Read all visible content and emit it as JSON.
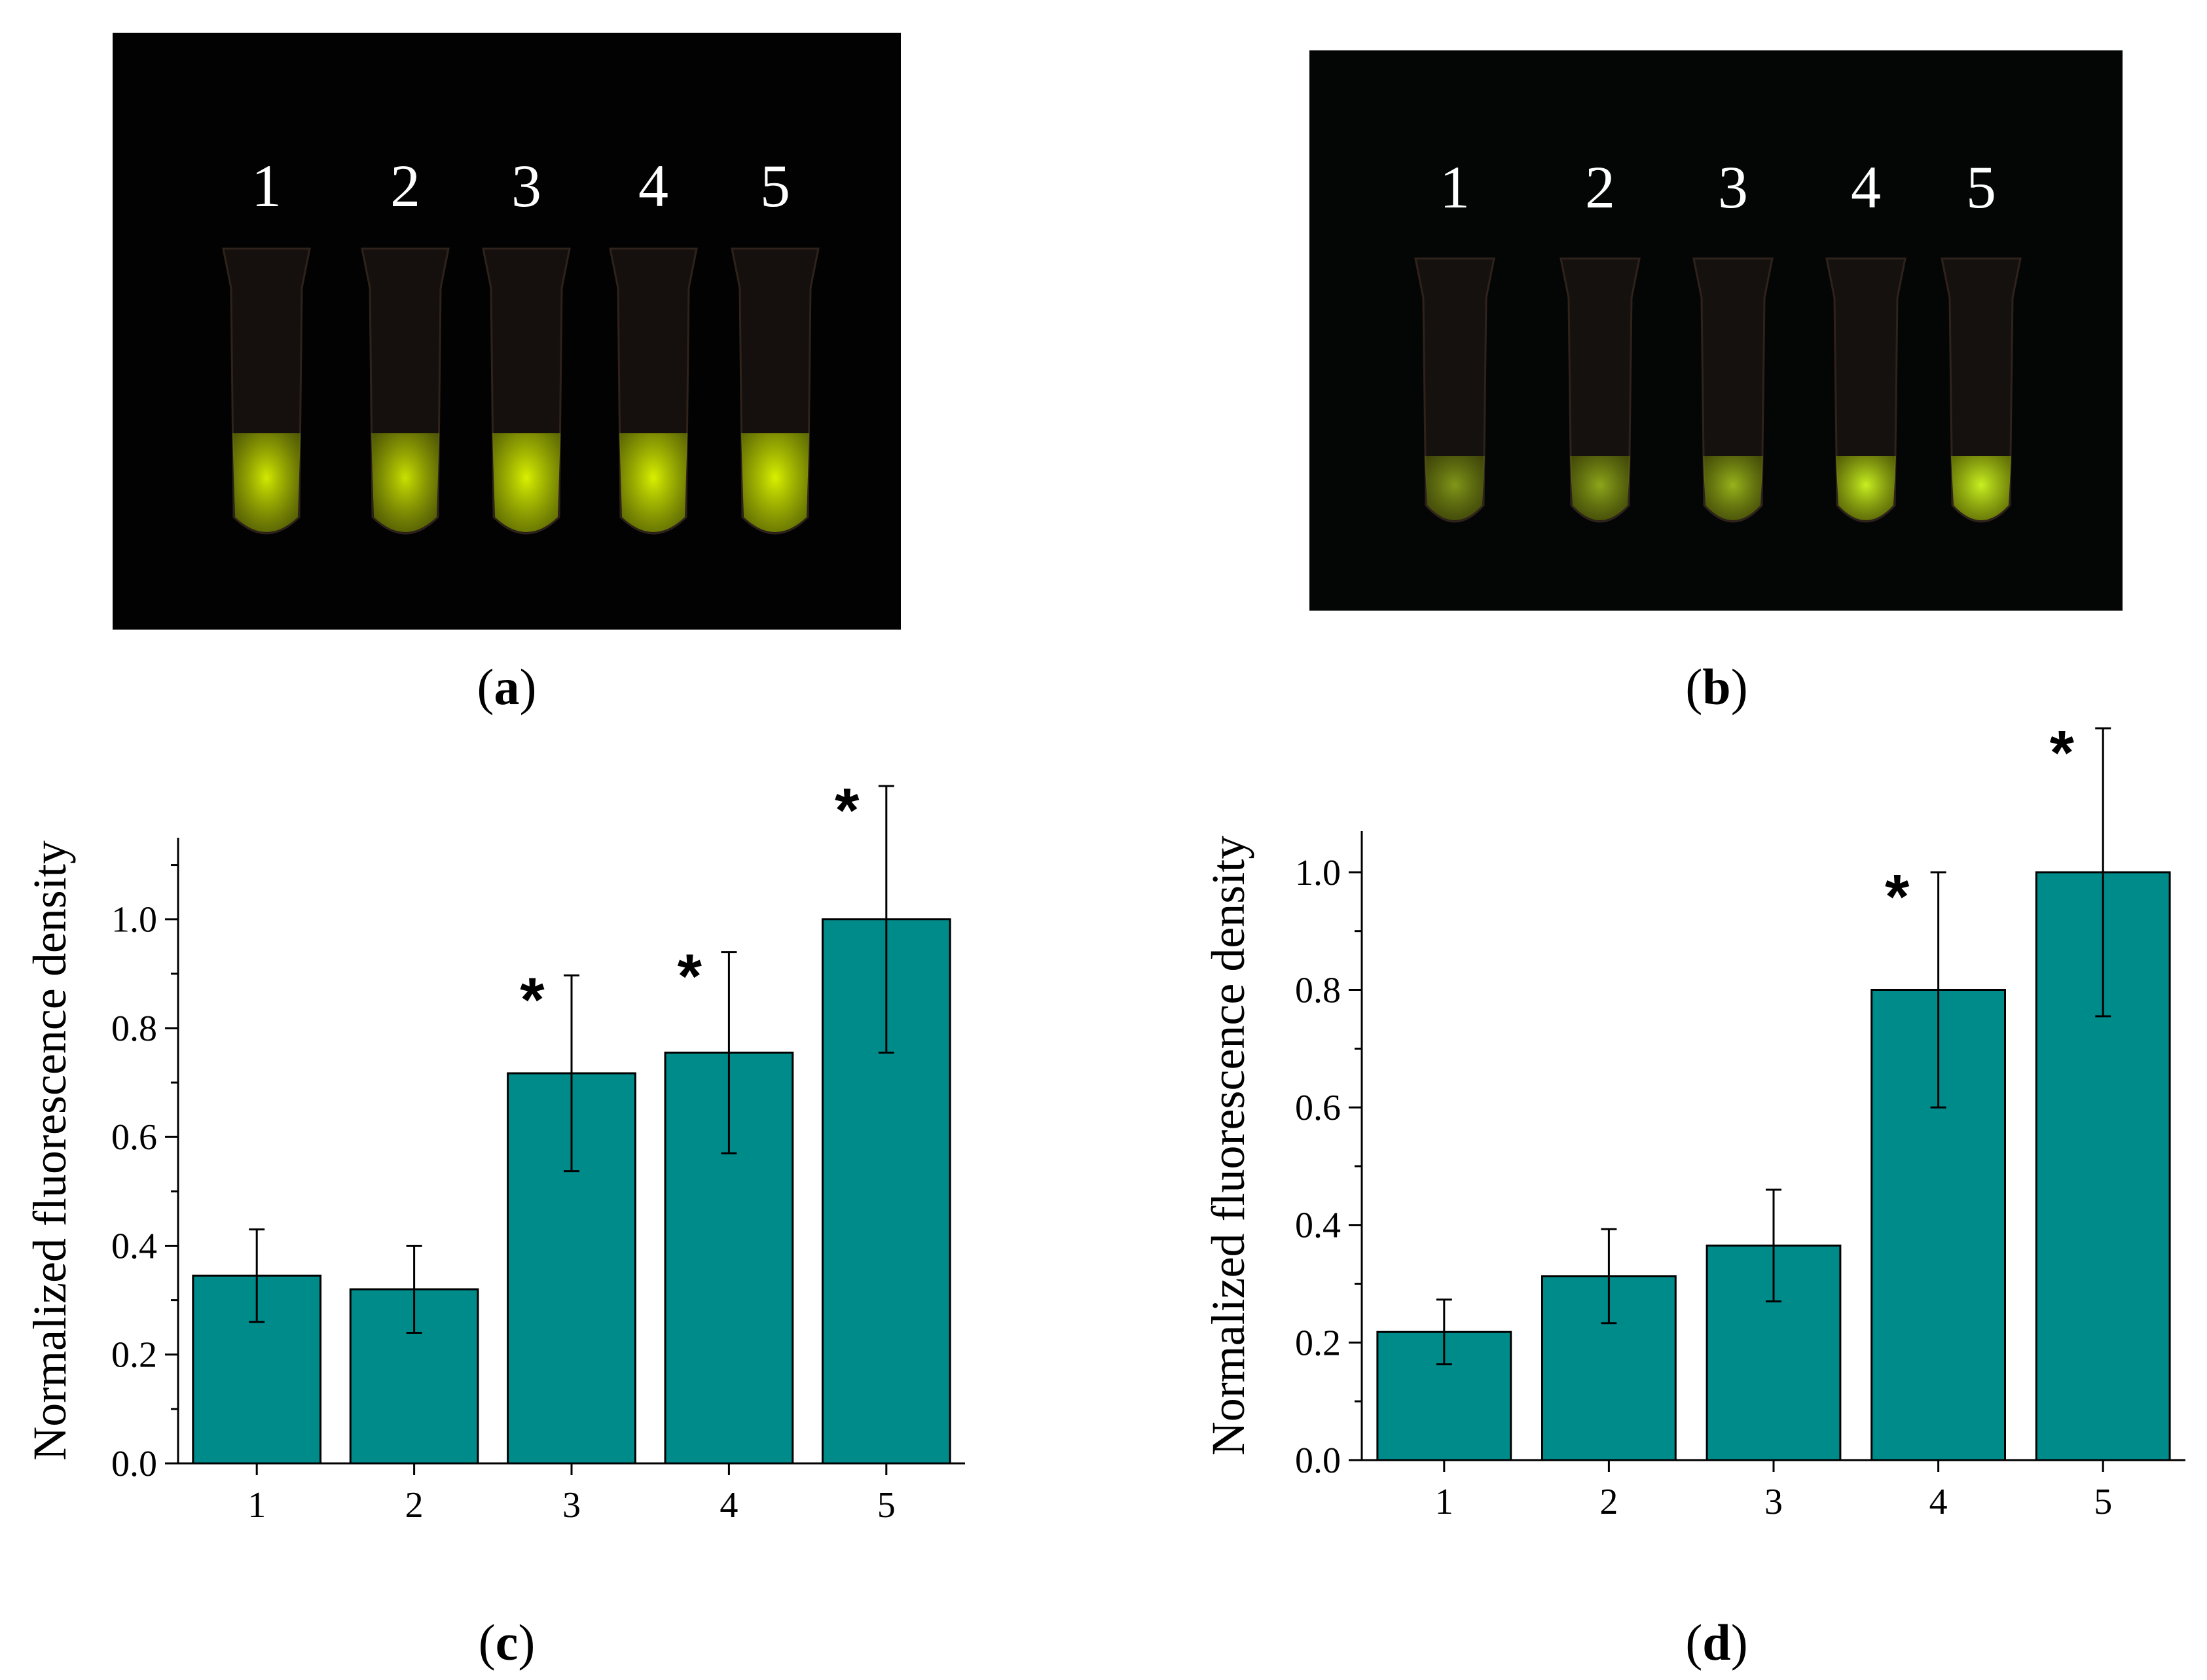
{
  "panels": {
    "a": {
      "caption": "a",
      "tube_labels": [
        "1",
        "2",
        "3",
        "4",
        "5"
      ],
      "background": "#020202",
      "glow_color": "#d8f000",
      "intensity": [
        0.62,
        0.58,
        0.92,
        0.88,
        0.95
      ]
    },
    "b": {
      "caption": "b",
      "tube_labels": [
        "1",
        "2",
        "3",
        "4",
        "5"
      ],
      "background": "#040606",
      "glow_color": "#c8f020",
      "intensity": [
        0.25,
        0.32,
        0.38,
        0.7,
        0.95
      ]
    },
    "c": {
      "caption": "c"
    },
    "d": {
      "caption": "d"
    }
  },
  "chart_data": [
    {
      "panel": "c",
      "type": "bar",
      "categories": [
        "1",
        "2",
        "3",
        "4",
        "5"
      ],
      "values": [
        0.345,
        0.32,
        0.717,
        0.755,
        1.0
      ],
      "errors": [
        0.085,
        0.08,
        0.18,
        0.185,
        0.245
      ],
      "significance": [
        "",
        "",
        "*",
        "*",
        "*"
      ],
      "ylabel": "Normalized fluorescence density",
      "xlabel": "",
      "ylim": [
        0,
        1.15
      ],
      "yticks": [
        "0.0",
        "0.2",
        "0.4",
        "0.6",
        "0.8",
        "1.0"
      ],
      "bar_color": "#008b8b",
      "grid": false
    },
    {
      "panel": "d",
      "type": "bar",
      "categories": [
        "1",
        "2",
        "3",
        "4",
        "5"
      ],
      "values": [
        0.218,
        0.313,
        0.365,
        0.8,
        1.0
      ],
      "errors": [
        0.055,
        0.08,
        0.095,
        0.2,
        0.245
      ],
      "significance": [
        "",
        "",
        "",
        "*",
        "*"
      ],
      "ylabel": "Normalized fluorescence density",
      "xlabel": "",
      "ylim": [
        0,
        1.07
      ],
      "yticks": [
        "0.0",
        "0.2",
        "0.4",
        "0.6",
        "0.8",
        "1.0"
      ],
      "bar_color": "#008b8b",
      "grid": false
    }
  ]
}
